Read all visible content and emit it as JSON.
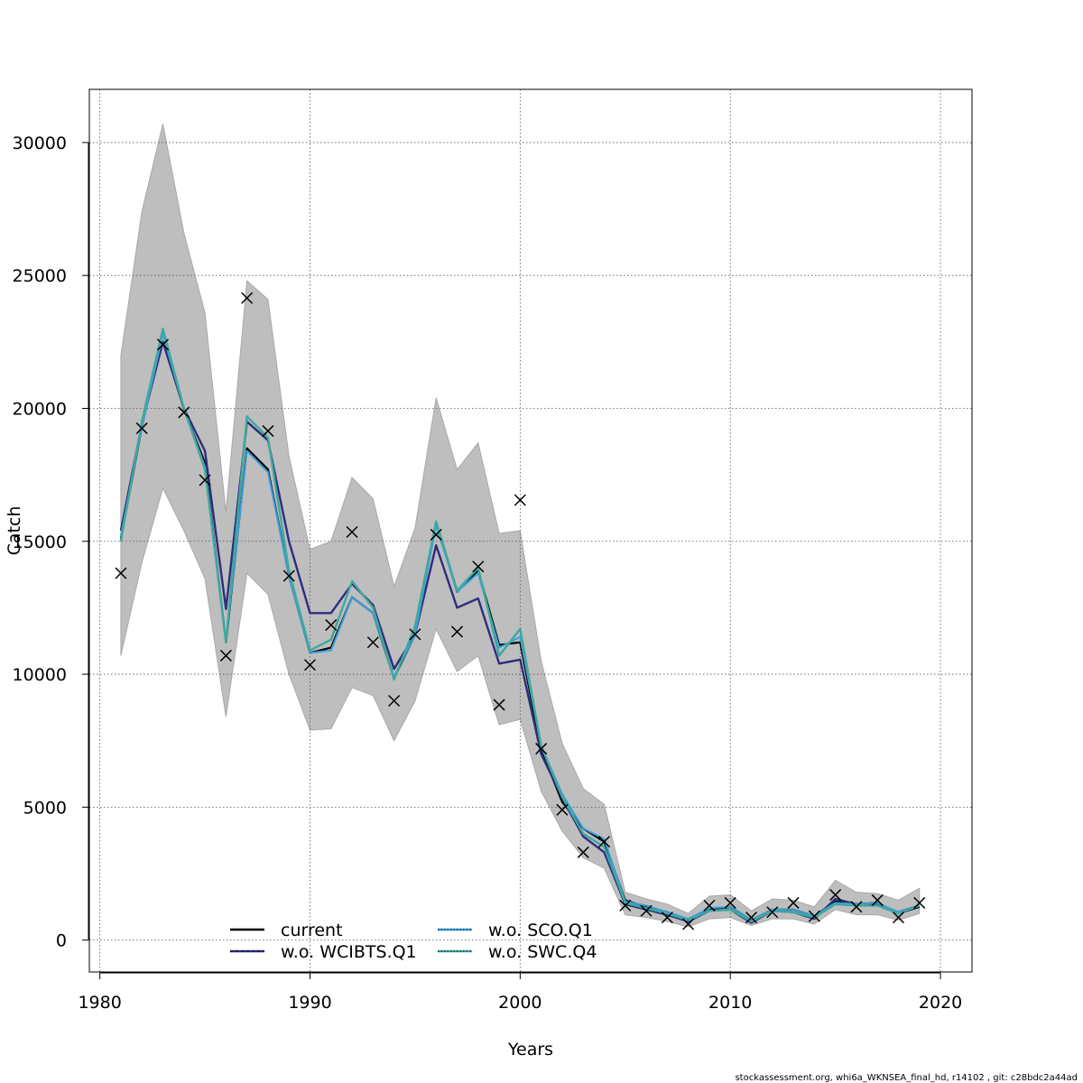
{
  "chart_data": {
    "type": "line",
    "xlabel": "Years",
    "ylabel": "Catch",
    "xlim": [
      1979.5,
      2021.5
    ],
    "ylim": [
      -1200,
      32000
    ],
    "grid": true,
    "x_ticks": [
      1980,
      1990,
      2000,
      2010,
      2020
    ],
    "y_ticks": [
      0,
      5000,
      10000,
      15000,
      20000,
      25000,
      30000
    ],
    "x": [
      1981,
      1982,
      1983,
      1984,
      1985,
      1986,
      1987,
      1988,
      1989,
      1990,
      1991,
      1992,
      1993,
      1994,
      1995,
      1996,
      1997,
      1998,
      1999,
      2000,
      2001,
      2002,
      2003,
      2004,
      2005,
      2006,
      2007,
      2008,
      2009,
      2010,
      2011,
      2012,
      2013,
      2014,
      2015,
      2016,
      2017,
      2018,
      2019
    ],
    "confidence_band": {
      "color": "#bebebe",
      "upper": [
        22000,
        27400,
        30700,
        26600,
        23600,
        16100,
        24800,
        24100,
        18200,
        14700,
        15000,
        17400,
        16600,
        13300,
        15500,
        20400,
        17700,
        18700,
        15300,
        15400,
        10500,
        7400,
        5700,
        5100,
        1800,
        1550,
        1350,
        1000,
        1650,
        1700,
        1100,
        1550,
        1500,
        1250,
        2250,
        1800,
        1750,
        1500,
        1950
      ],
      "lower": [
        10700,
        14200,
        17000,
        15400,
        13600,
        8400,
        13800,
        13000,
        10000,
        7900,
        7950,
        9500,
        9200,
        7500,
        9000,
        11700,
        10100,
        10700,
        8100,
        8300,
        5600,
        4100,
        3100,
        2700,
        950,
        850,
        700,
        500,
        800,
        850,
        550,
        800,
        800,
        600,
        1150,
        950,
        950,
        750,
        1000
      ]
    },
    "observations": {
      "marker": "x",
      "color": "#000000",
      "values": [
        13800,
        19250,
        22400,
        19850,
        17300,
        10700,
        24150,
        19150,
        13700,
        10350,
        11850,
        15350,
        11200,
        9000,
        11500,
        15250,
        11600,
        14050,
        8850,
        16550,
        7200,
        4900,
        3300,
        3700,
        1300,
        1100,
        850,
        600,
        1300,
        1400,
        850,
        1050,
        1400,
        900,
        1700,
        1250,
        1500,
        850,
        1400
      ]
    },
    "series": [
      {
        "name": "current",
        "color": "#000000",
        "dash": "solid",
        "values": [
          15100,
          19300,
          22950,
          19950,
          17950,
          11200,
          18500,
          17700,
          13700,
          10800,
          11000,
          12900,
          12300,
          9850,
          11500,
          15700,
          13100,
          13900,
          11100,
          11200,
          7150,
          5200,
          4200,
          3700,
          1500,
          1250,
          1050,
          750,
          1150,
          1250,
          750,
          1150,
          1150,
          900,
          1450,
          1350,
          1400,
          1000,
          1250
        ]
      },
      {
        "name": "w.o. WCIBTS.Q1",
        "color": "#2d2d7e",
        "dash": "dashed",
        "values": [
          15400,
          19400,
          22500,
          20000,
          18400,
          12450,
          19500,
          18800,
          15000,
          12300,
          12300,
          13400,
          12600,
          10200,
          11500,
          14850,
          12500,
          12850,
          10400,
          10550,
          7000,
          5350,
          3900,
          3300,
          1350,
          1150,
          950,
          700,
          1100,
          1150,
          650,
          1100,
          1050,
          800,
          1550,
          1350,
          1350,
          1050,
          1300
        ]
      },
      {
        "name": "w.o. SCO.Q1",
        "color": "#3aa0e0",
        "dash": "dotted",
        "values": [
          15200,
          19300,
          22800,
          20000,
          17800,
          11300,
          18400,
          17600,
          13700,
          10800,
          10900,
          12900,
          12300,
          9900,
          11500,
          15600,
          13100,
          13800,
          11000,
          11400,
          7300,
          5500,
          4200,
          3800,
          1450,
          1300,
          1050,
          800,
          1200,
          1250,
          750,
          1150,
          1150,
          900,
          1400,
          1350,
          1400,
          1050,
          1300
        ]
      },
      {
        "name": "w.o. SWC.Q4",
        "color": "#3fa99c",
        "dash": "dotted",
        "values": [
          15000,
          19500,
          23000,
          20000,
          17700,
          11200,
          19700,
          18900,
          13900,
          10900,
          11300,
          13500,
          12500,
          9800,
          11800,
          15750,
          13150,
          14000,
          10700,
          11700,
          7300,
          5400,
          4000,
          3500,
          1400,
          1200,
          1000,
          750,
          1100,
          1150,
          700,
          1100,
          1050,
          850,
          1350,
          1300,
          1300,
          1000,
          1300
        ]
      }
    ],
    "legend": {
      "placement": "bottom-center",
      "columns": 2,
      "items": [
        "current",
        "w.o. WCIBTS.Q1",
        "w.o. SCO.Q1",
        "w.o. SWC.Q4"
      ]
    }
  },
  "footer": {
    "text": "stockassessment.org, whi6a_WKNSEA_final_hd, r14102 , git: c28bdc2a44ad"
  }
}
